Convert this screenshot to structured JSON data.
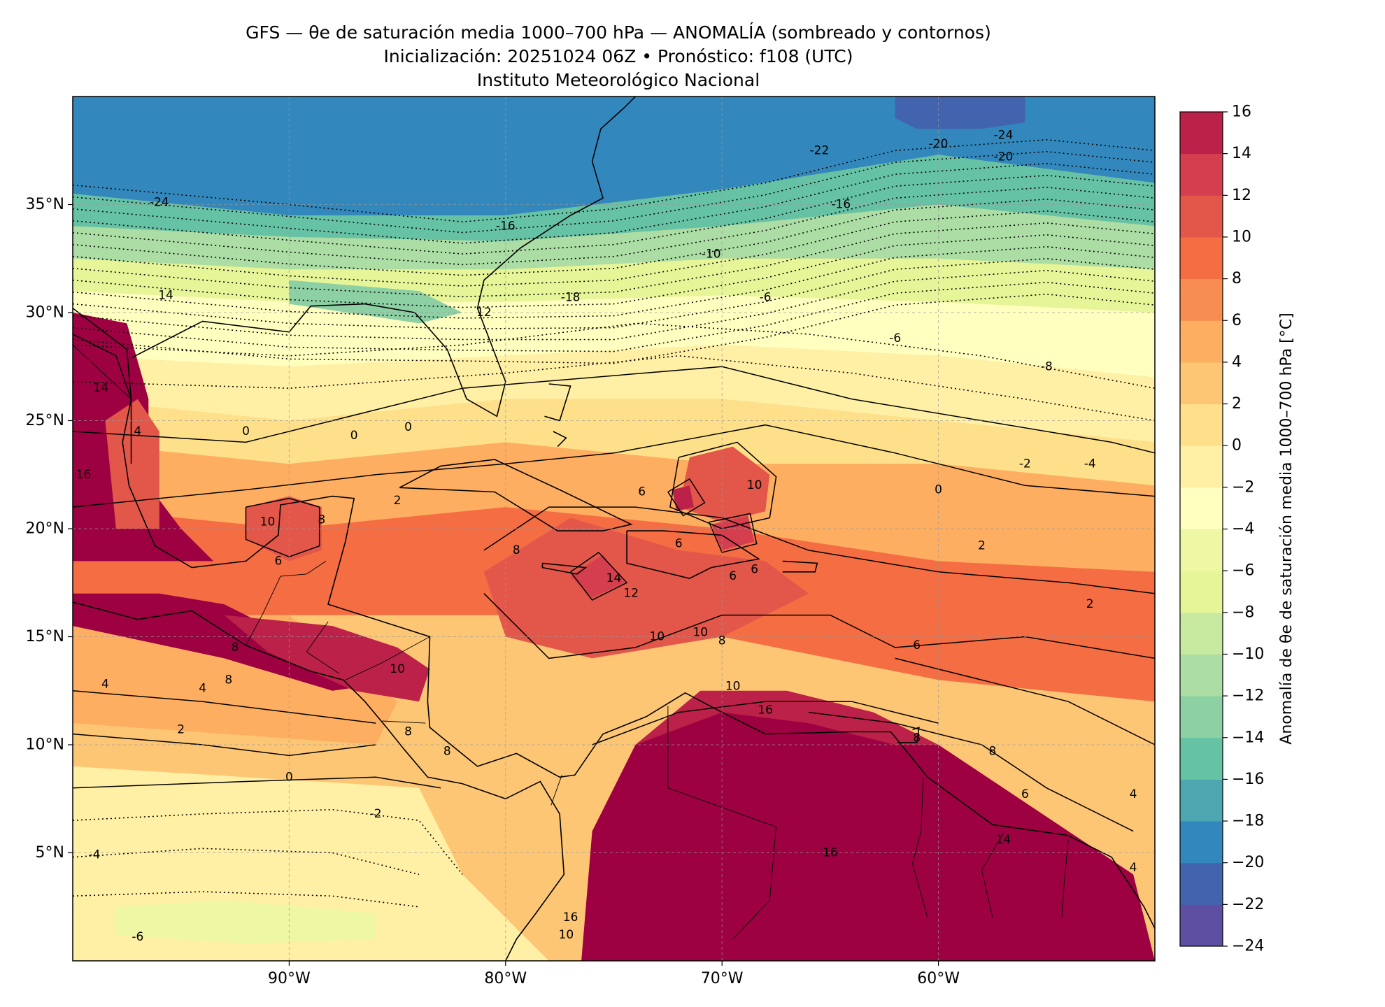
{
  "header": {
    "line1": "GFS — θe de saturación media 1000–700 hPa — ANOMALÍA (sombreado y contornos)",
    "line2": "Inicialización: 20251024 06Z   •   Pronóstico: f108 (UTC)",
    "line3": "Instituto Meteorológico Nacional"
  },
  "map": {
    "lon_range": [
      -100,
      -50
    ],
    "lat_range": [
      0,
      40
    ],
    "lat_ticks": [
      {
        "lat": 35,
        "label": "35°N"
      },
      {
        "lat": 30,
        "label": "30°N"
      },
      {
        "lat": 25,
        "label": "25°N"
      },
      {
        "lat": 20,
        "label": "20°N"
      },
      {
        "lat": 15,
        "label": "15°N"
      },
      {
        "lat": 10,
        "label": "10°N"
      },
      {
        "lat": 5,
        "label": "5°N"
      }
    ],
    "lon_ticks": [
      {
        "lon": -90,
        "label": "90°W"
      },
      {
        "lon": -80,
        "label": "80°W"
      },
      {
        "lon": -70,
        "label": "70°W"
      },
      {
        "lon": -60,
        "label": "60°W"
      }
    ],
    "grid": true,
    "contour_labels": [
      {
        "lon": -96,
        "lat": 35.1,
        "text": "-24"
      },
      {
        "lon": -77,
        "lat": 30.7,
        "text": "-18"
      },
      {
        "lon": -80,
        "lat": 34,
        "text": "-16"
      },
      {
        "lon": -70.5,
        "lat": 32.7,
        "text": "-10"
      },
      {
        "lon": -68,
        "lat": 30.7,
        "text": "-6"
      },
      {
        "lon": -81,
        "lat": 30,
        "text": "12"
      },
      {
        "lon": -95.7,
        "lat": 30.8,
        "text": "14"
      },
      {
        "lon": -64.5,
        "lat": 35,
        "text": "-16"
      },
      {
        "lon": -65.5,
        "lat": 37.5,
        "text": "-22"
      },
      {
        "lon": -60,
        "lat": 37.8,
        "text": "-20"
      },
      {
        "lon": -57,
        "lat": 38.2,
        "text": "-24"
      },
      {
        "lon": -57,
        "lat": 37.2,
        "text": "-20"
      },
      {
        "lon": -92,
        "lat": 24.5,
        "text": "0"
      },
      {
        "lon": -87,
        "lat": 24.3,
        "text": "0"
      },
      {
        "lon": -84.5,
        "lat": 24.7,
        "text": "0"
      },
      {
        "lon": -91,
        "lat": 20.3,
        "text": "10"
      },
      {
        "lon": -88.5,
        "lat": 20.4,
        "text": "8"
      },
      {
        "lon": -90.5,
        "lat": 18.5,
        "text": "6"
      },
      {
        "lon": -85,
        "lat": 21.3,
        "text": "2"
      },
      {
        "lon": -79.5,
        "lat": 19,
        "text": "8"
      },
      {
        "lon": -73.7,
        "lat": 21.7,
        "text": "6"
      },
      {
        "lon": -75,
        "lat": 17.7,
        "text": "14"
      },
      {
        "lon": -74.2,
        "lat": 17,
        "text": "12"
      },
      {
        "lon": -73,
        "lat": 15,
        "text": "10"
      },
      {
        "lon": -71,
        "lat": 15.2,
        "text": "10"
      },
      {
        "lon": -70,
        "lat": 14.8,
        "text": "8"
      },
      {
        "lon": -69.5,
        "lat": 12.7,
        "text": "10"
      },
      {
        "lon": -68.5,
        "lat": 22,
        "text": "10"
      },
      {
        "lon": -69.5,
        "lat": 17.8,
        "text": "6"
      },
      {
        "lon": -68.5,
        "lat": 18.1,
        "text": "6"
      },
      {
        "lon": -72,
        "lat": 19.3,
        "text": "6"
      },
      {
        "lon": -58,
        "lat": 19.2,
        "text": "2"
      },
      {
        "lon": -56,
        "lat": 23,
        "text": "-2"
      },
      {
        "lon": -60,
        "lat": 21.8,
        "text": "0"
      },
      {
        "lon": -53,
        "lat": 23,
        "text": "-4"
      },
      {
        "lon": -55,
        "lat": 27.5,
        "text": "-8"
      },
      {
        "lon": -62,
        "lat": 28.8,
        "text": "-6"
      },
      {
        "lon": -53,
        "lat": 16.5,
        "text": "2"
      },
      {
        "lon": -61,
        "lat": 14.6,
        "text": "6"
      },
      {
        "lon": -61,
        "lat": 10.3,
        "text": "8"
      },
      {
        "lon": -57.5,
        "lat": 9.7,
        "text": "8"
      },
      {
        "lon": -56,
        "lat": 7.7,
        "text": "6"
      },
      {
        "lon": -51,
        "lat": 7.7,
        "text": "4"
      },
      {
        "lon": -51,
        "lat": 4.3,
        "text": "4"
      },
      {
        "lon": -57,
        "lat": 5.6,
        "text": "14"
      },
      {
        "lon": -65,
        "lat": 5,
        "text": "16"
      },
      {
        "lon": -68,
        "lat": 11.6,
        "text": "16"
      },
      {
        "lon": -97,
        "lat": 24.5,
        "text": "4"
      },
      {
        "lon": -98.7,
        "lat": 26.5,
        "text": "14"
      },
      {
        "lon": -99.5,
        "lat": 22.5,
        "text": "16"
      },
      {
        "lon": -92.5,
        "lat": 14.5,
        "text": "8"
      },
      {
        "lon": -92.8,
        "lat": 13,
        "text": "8"
      },
      {
        "lon": -98.5,
        "lat": 12.8,
        "text": "4"
      },
      {
        "lon": -94,
        "lat": 12.6,
        "text": "4"
      },
      {
        "lon": -95,
        "lat": 10.7,
        "text": "2"
      },
      {
        "lon": -90,
        "lat": 8.5,
        "text": "0"
      },
      {
        "lon": -86,
        "lat": 6.8,
        "text": "-2"
      },
      {
        "lon": -99,
        "lat": 4.9,
        "text": "-4"
      },
      {
        "lon": -97,
        "lat": 1.1,
        "text": "-6"
      },
      {
        "lon": -85,
        "lat": 13.5,
        "text": "10"
      },
      {
        "lon": -84.5,
        "lat": 10.6,
        "text": "8"
      },
      {
        "lon": -82.7,
        "lat": 9.7,
        "text": "8"
      },
      {
        "lon": -77.2,
        "lat": 1.2,
        "text": "10"
      },
      {
        "lon": -77,
        "lat": 2,
        "text": "16"
      }
    ]
  },
  "colorbar": {
    "title": "Anomalía de θe de saturación media 1000–700 hPa [°C]",
    "range": [
      -24,
      16
    ],
    "step": 2,
    "tick_labels": [
      "−24",
      "−22",
      "−20",
      "−18",
      "−16",
      "−14",
      "−12",
      "−10",
      "−8",
      "−6",
      "−4",
      "−2",
      "0",
      "2",
      "4",
      "6",
      "8",
      "10",
      "12",
      "14",
      "16"
    ],
    "colors": [
      "#5e4fa2",
      "#4263ae",
      "#3288bd",
      "#4ea6b0",
      "#66c2a5",
      "#8dd0a4",
      "#abdda4",
      "#c8e9a0",
      "#e6f598",
      "#eef8a4",
      "#ffffbf",
      "#fff0a6",
      "#fee08b",
      "#fdc675",
      "#fdae61",
      "#f88d52",
      "#f46d43",
      "#e25749",
      "#d53e4f",
      "#bc2249",
      "#9e0142"
    ]
  }
}
